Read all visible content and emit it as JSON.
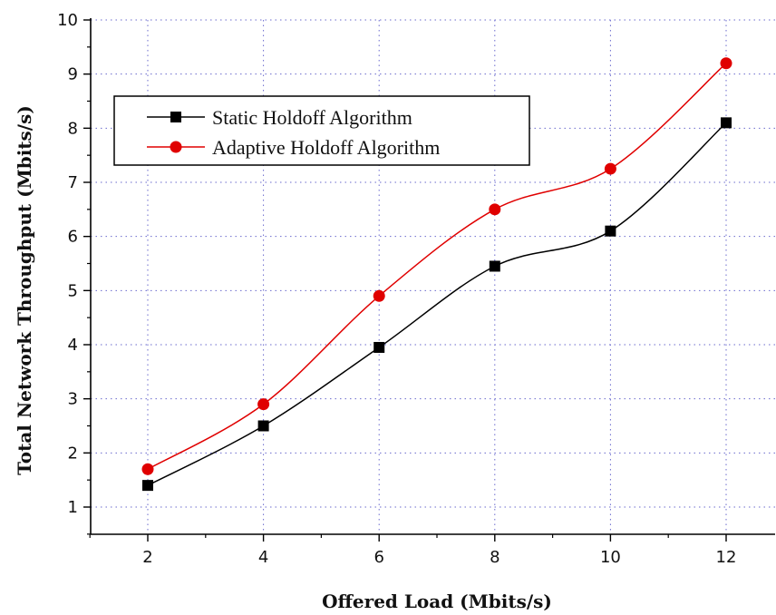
{
  "chart_data": {
    "type": "line",
    "xlabel": "Offered Load (Mbits/s)",
    "ylabel": "Total Network Throughput (Mbits/s)",
    "xlim": [
      1,
      13
    ],
    "ylim": [
      0.5,
      10
    ],
    "x_ticks": [
      2,
      4,
      6,
      8,
      10,
      12
    ],
    "y_ticks": [
      1,
      2,
      3,
      4,
      5,
      6,
      7,
      8,
      9,
      10
    ],
    "grid": true,
    "legend_position": "top-left",
    "series": [
      {
        "name": "Static Holdoff Algorithm",
        "color": "#000000",
        "marker": "square",
        "x": [
          2,
          4,
          6,
          8,
          10,
          12
        ],
        "values": [
          1.4,
          2.5,
          3.95,
          5.45,
          6.1,
          8.1
        ]
      },
      {
        "name": "Adaptive Holdoff Algorithm",
        "color": "#e00000",
        "marker": "circle",
        "x": [
          2,
          4,
          6,
          8,
          10,
          12
        ],
        "values": [
          1.7,
          2.9,
          4.9,
          6.5,
          7.25,
          9.2
        ]
      }
    ]
  }
}
